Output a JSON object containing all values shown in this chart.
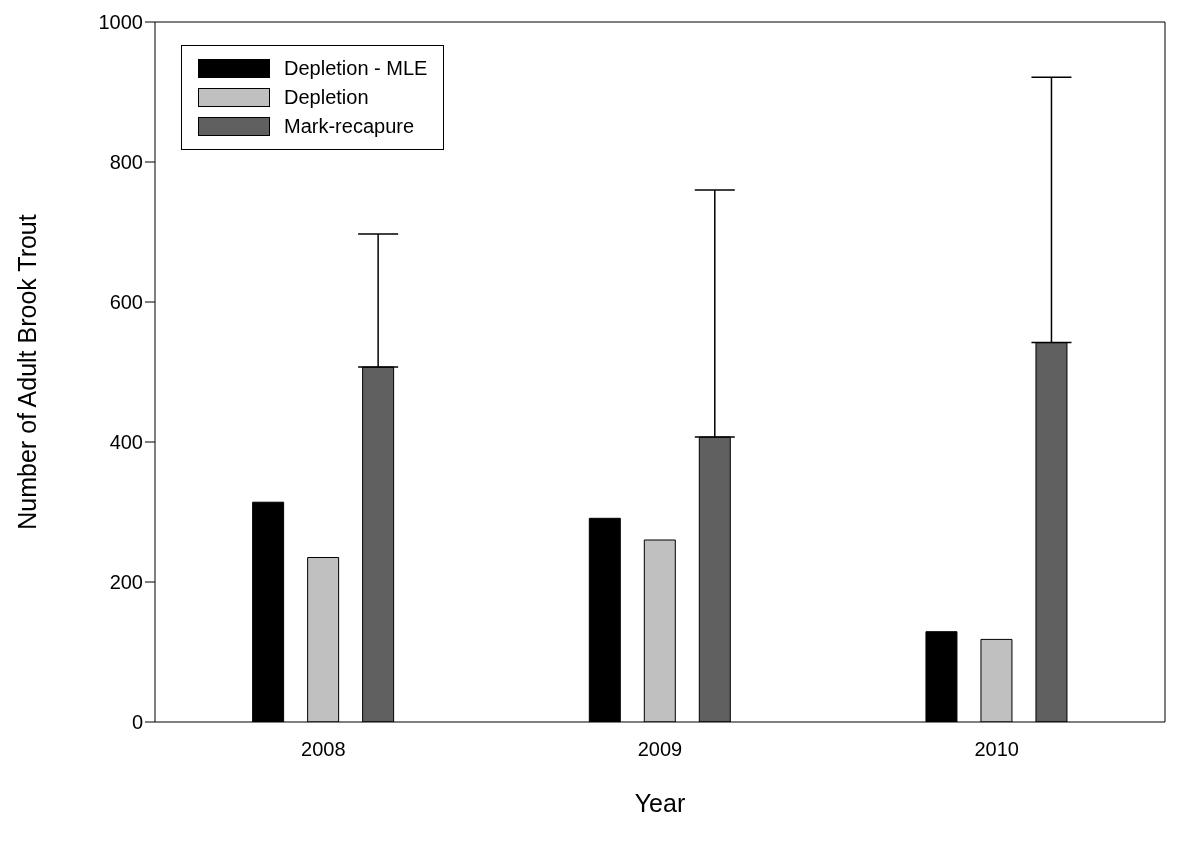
{
  "chart_data": {
    "type": "bar",
    "xlabel": "Year",
    "ylabel": "Number of Adult Brook Trout",
    "categories": [
      "2008",
      "2009",
      "2010"
    ],
    "series": [
      {
        "name": "Depletion - MLE",
        "color": "#000000",
        "values": [
          314,
          291,
          129
        ]
      },
      {
        "name": "Depletion",
        "color": "#c0c0c0",
        "values": [
          235,
          260,
          118
        ]
      },
      {
        "name": "Mark-recapure",
        "color": "#606060",
        "values": [
          507,
          407,
          542
        ],
        "errors": [
          [
            507,
            697
          ],
          [
            407,
            760
          ],
          [
            542,
            921
          ]
        ]
      }
    ],
    "ylim": [
      0,
      1000
    ],
    "yticks": [
      0,
      200,
      400,
      600,
      800,
      1000
    ],
    "grid": false,
    "legend": "top left"
  }
}
